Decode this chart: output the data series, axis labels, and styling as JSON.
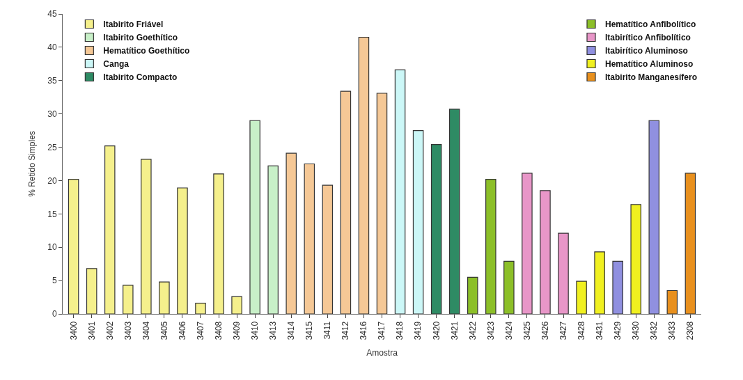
{
  "chart_data": {
    "type": "bar",
    "xlabel": "Amostra",
    "ylabel": "% Retido Simples",
    "categories": [
      "3400",
      "3401",
      "3402",
      "3403",
      "3404",
      "3405",
      "3406",
      "3407",
      "3408",
      "3409",
      "3410",
      "3413",
      "3414",
      "3415",
      "3411",
      "3412",
      "3416",
      "3417",
      "3418",
      "3419",
      "3420",
      "3421",
      "3422",
      "3423",
      "3424",
      "3425",
      "3426",
      "3427",
      "3428",
      "3431",
      "3429",
      "3430",
      "3432",
      "3433",
      "2308"
    ],
    "ylim": [
      0,
      45
    ],
    "yticks": [
      0,
      5,
      10,
      15,
      20,
      25,
      30,
      35,
      40,
      45
    ],
    "legend": "top",
    "series": [
      {
        "name": "Itabirito Friável",
        "color": "#f5f08c",
        "values": [
          20.2,
          6.8,
          25.2,
          4.3,
          23.2,
          4.8,
          18.9,
          1.6,
          21.0,
          2.6,
          null,
          null,
          null,
          null,
          null,
          null,
          null,
          null,
          null,
          null,
          null,
          null,
          null,
          null,
          null,
          null,
          null,
          null,
          null,
          null,
          null,
          null,
          null,
          null,
          null
        ]
      },
      {
        "name": "Itabirito Goethítico",
        "color": "#c8f0c8",
        "values": [
          null,
          null,
          null,
          null,
          null,
          null,
          null,
          null,
          null,
          null,
          29.0,
          22.2,
          null,
          null,
          null,
          null,
          null,
          null,
          null,
          null,
          null,
          null,
          null,
          null,
          null,
          null,
          null,
          null,
          null,
          null,
          null,
          null,
          null,
          null,
          null
        ]
      },
      {
        "name": "Hematítico Goethítico",
        "color": "#f5c896",
        "values": [
          null,
          null,
          null,
          null,
          null,
          null,
          null,
          null,
          null,
          null,
          null,
          null,
          24.1,
          22.5,
          19.3,
          33.4,
          41.5,
          33.1,
          null,
          null,
          null,
          null,
          null,
          null,
          null,
          null,
          null,
          null,
          null,
          null,
          null,
          null,
          null,
          null,
          null
        ]
      },
      {
        "name": "Canga",
        "color": "#ccf7f7",
        "values": [
          null,
          null,
          null,
          null,
          null,
          null,
          null,
          null,
          null,
          null,
          null,
          null,
          null,
          null,
          null,
          null,
          null,
          null,
          36.6,
          27.5,
          null,
          null,
          null,
          null,
          null,
          null,
          null,
          null,
          null,
          null,
          null,
          null,
          null,
          null,
          null
        ]
      },
      {
        "name": "Itabirito Compacto",
        "color": "#2e8b64",
        "values": [
          null,
          null,
          null,
          null,
          null,
          null,
          null,
          null,
          null,
          null,
          null,
          null,
          null,
          null,
          null,
          null,
          null,
          null,
          null,
          null,
          25.4,
          30.7,
          null,
          null,
          null,
          null,
          null,
          null,
          null,
          null,
          null,
          null,
          null,
          null,
          null
        ]
      },
      {
        "name": "Hematítico Anfibolítico",
        "color": "#8cbf28",
        "values": [
          null,
          null,
          null,
          null,
          null,
          null,
          null,
          null,
          null,
          null,
          null,
          null,
          null,
          null,
          null,
          null,
          null,
          null,
          null,
          null,
          null,
          null,
          5.5,
          20.2,
          7.9,
          null,
          null,
          null,
          null,
          null,
          null,
          null,
          null,
          null,
          null
        ]
      },
      {
        "name": "Itabirítico Anfibolítico",
        "color": "#e896c8",
        "values": [
          null,
          null,
          null,
          null,
          null,
          null,
          null,
          null,
          null,
          null,
          null,
          null,
          null,
          null,
          null,
          null,
          null,
          null,
          null,
          null,
          null,
          null,
          null,
          null,
          null,
          21.1,
          18.5,
          12.1,
          null,
          null,
          null,
          null,
          null,
          null,
          null
        ]
      },
      {
        "name": "Itabirítico Aluminoso",
        "color": "#9090e0",
        "values": [
          null,
          null,
          null,
          null,
          null,
          null,
          null,
          null,
          null,
          null,
          null,
          null,
          null,
          null,
          null,
          null,
          null,
          null,
          null,
          null,
          null,
          null,
          null,
          null,
          null,
          null,
          null,
          null,
          null,
          null,
          7.9,
          null,
          29.0,
          null,
          null
        ]
      },
      {
        "name": "Hematítico Aluminoso",
        "color": "#f0f020",
        "values": [
          null,
          null,
          null,
          null,
          null,
          null,
          null,
          null,
          null,
          null,
          null,
          null,
          null,
          null,
          null,
          null,
          null,
          null,
          null,
          null,
          null,
          null,
          null,
          null,
          null,
          null,
          null,
          null,
          4.9,
          9.3,
          null,
          16.4,
          null,
          null,
          null
        ]
      },
      {
        "name": "Itabirito Manganesífero",
        "color": "#e8901e",
        "values": [
          null,
          null,
          null,
          null,
          null,
          null,
          null,
          null,
          null,
          null,
          null,
          null,
          null,
          null,
          null,
          null,
          null,
          null,
          null,
          null,
          null,
          null,
          null,
          null,
          null,
          null,
          null,
          null,
          null,
          null,
          null,
          null,
          null,
          3.5,
          21.1
        ]
      }
    ]
  }
}
